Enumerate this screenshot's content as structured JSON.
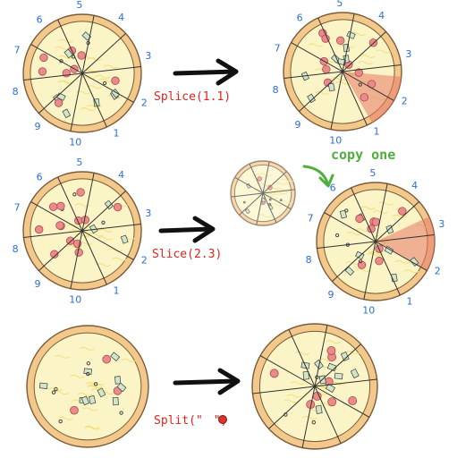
{
  "colors": {
    "crust": "#f3c98b",
    "crust_edge": "#7a5a3a",
    "cheese": "#fbf4c6",
    "pepperoni": "#e98b8b",
    "pepper": "#cfe6c9",
    "olive": "#444444",
    "label_red": "#e0241c",
    "number_blue": "#2a6fd6",
    "copy_green": "#4fae3c",
    "highlight": "#e87a6a"
  },
  "rows": [
    {
      "left_numbers": [
        "5",
        "4",
        "6",
        "7",
        "8",
        "9",
        "10",
        "1",
        "2",
        "3"
      ],
      "operation_label": "Splice(1.1)",
      "right_numbers": [
        "5",
        "4",
        "6",
        "7",
        "8",
        "9",
        "10",
        "1",
        "2",
        "3"
      ]
    },
    {
      "left_numbers": [
        "5",
        "4",
        "6",
        "7",
        "8",
        "9",
        "10",
        "1",
        "2",
        "3"
      ],
      "operation_label": "Slice(2.3)",
      "note": "copy one",
      "right_numbers": [
        "5",
        "4",
        "6",
        "7",
        "8",
        "9",
        "10",
        "1",
        "2",
        "3"
      ]
    },
    {
      "operation_label_prefix": "Split(\"",
      "operation_label_suffix": "\")"
    }
  ]
}
